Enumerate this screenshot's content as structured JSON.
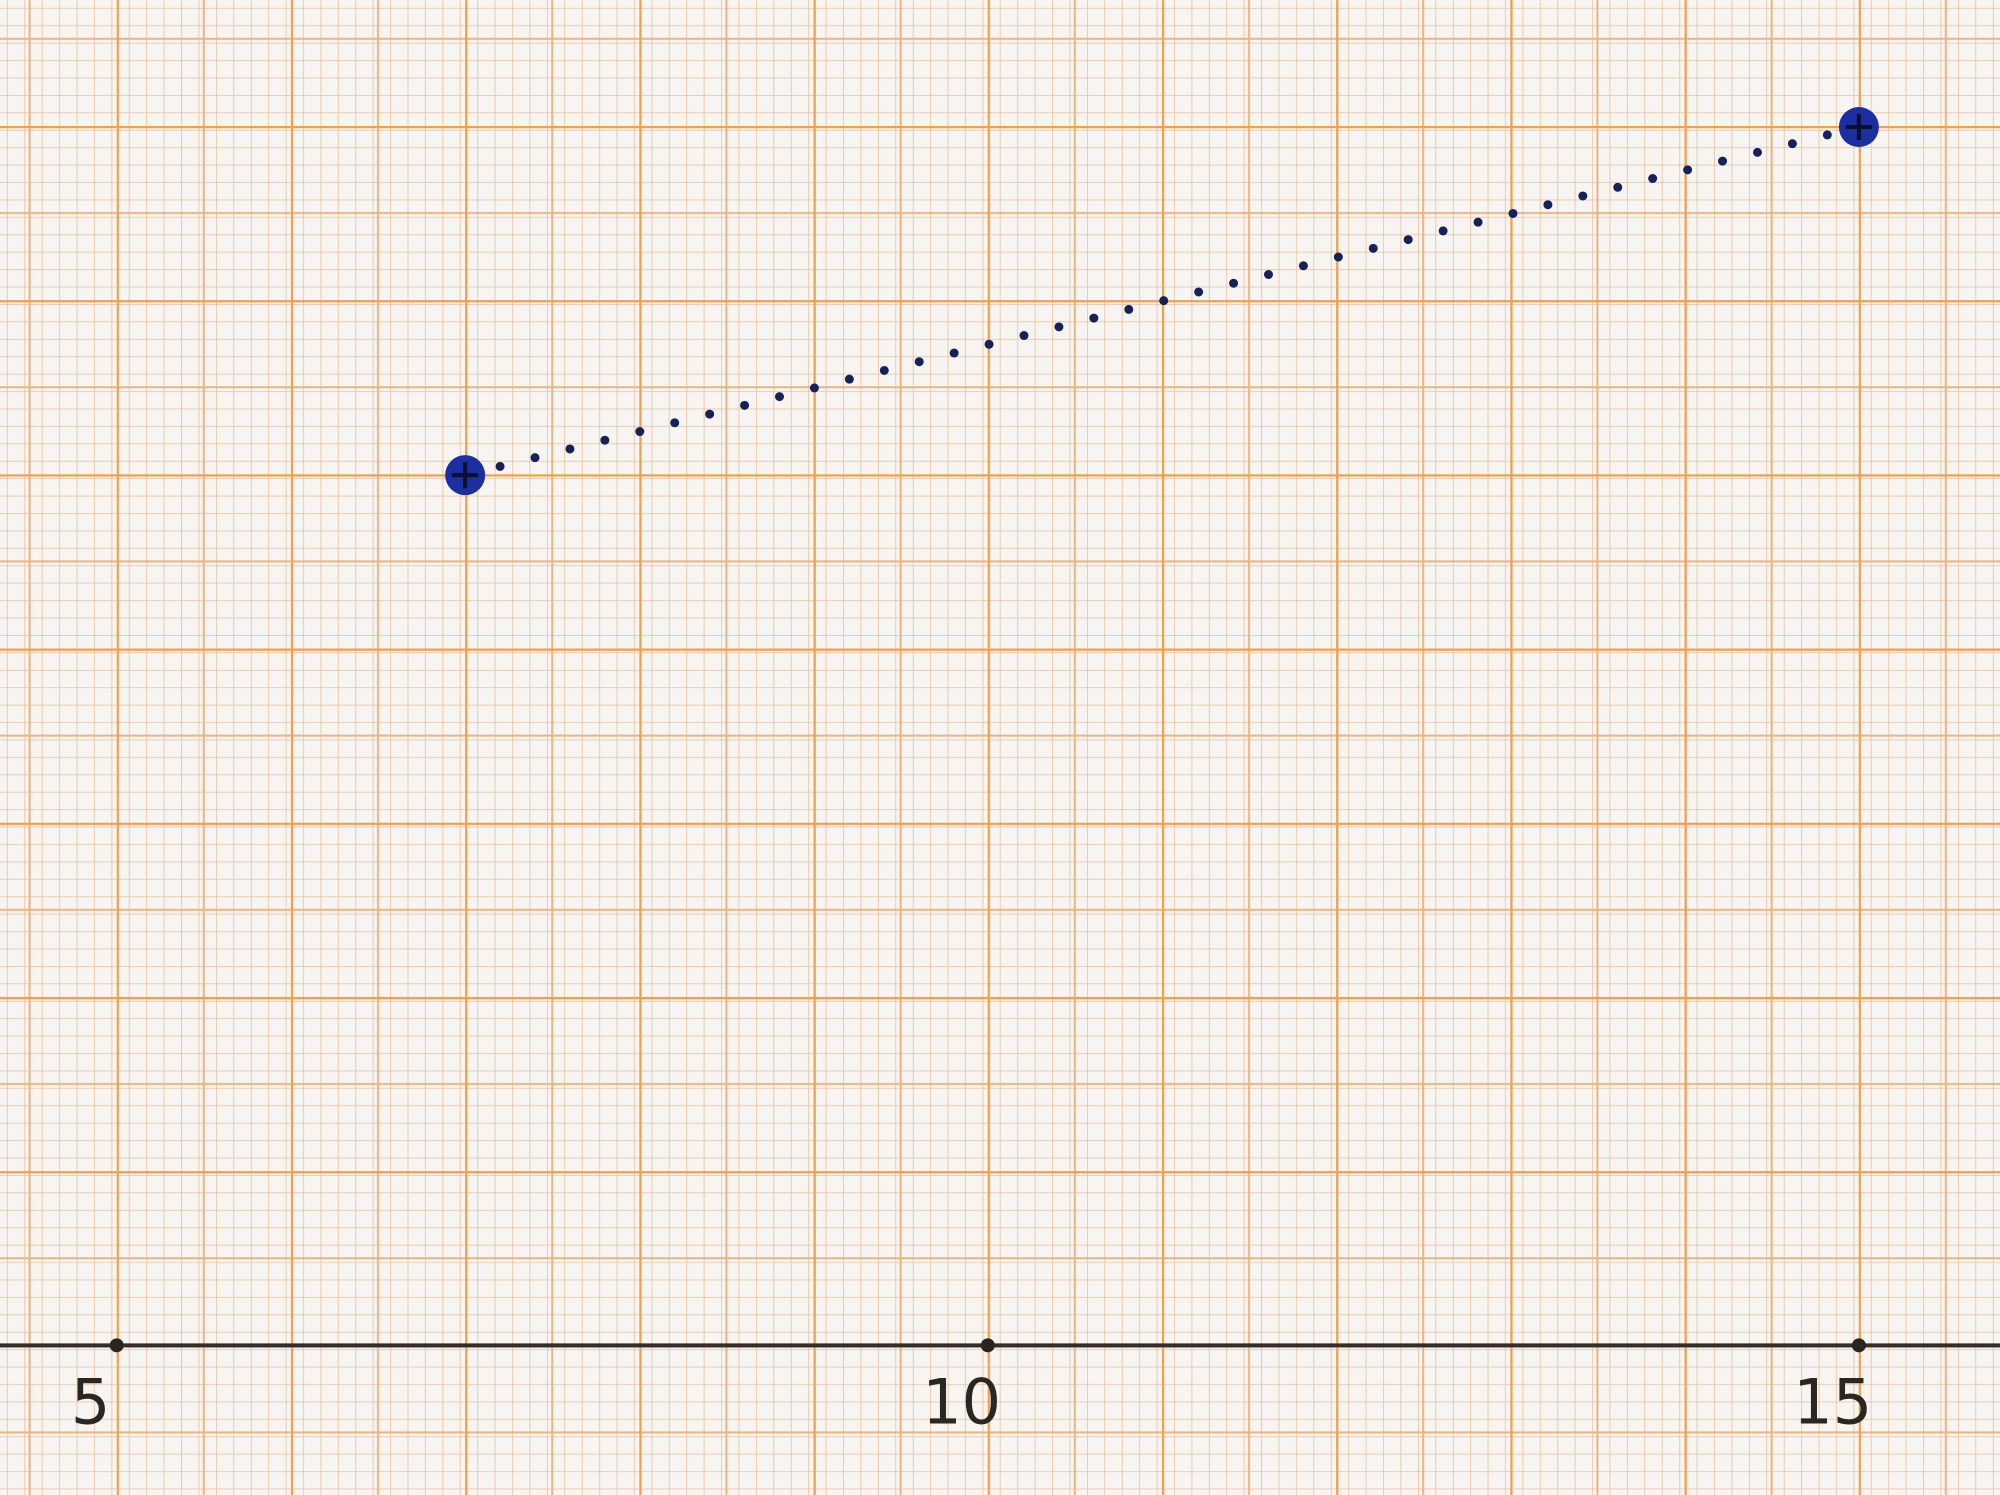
{
  "chart_data": {
    "type": "line",
    "x": [
      7,
      15
    ],
    "series": [
      {
        "color": "#16205a",
        "marker_color": "#1b2fa0",
        "values": [
          5,
          7
        ]
      }
    ],
    "xlim": [
      4.33,
      15.81
    ],
    "ylim": [
      -0.86,
      7.73
    ],
    "xticks": [
      5,
      10,
      15
    ],
    "line_style": "dotted"
  }
}
